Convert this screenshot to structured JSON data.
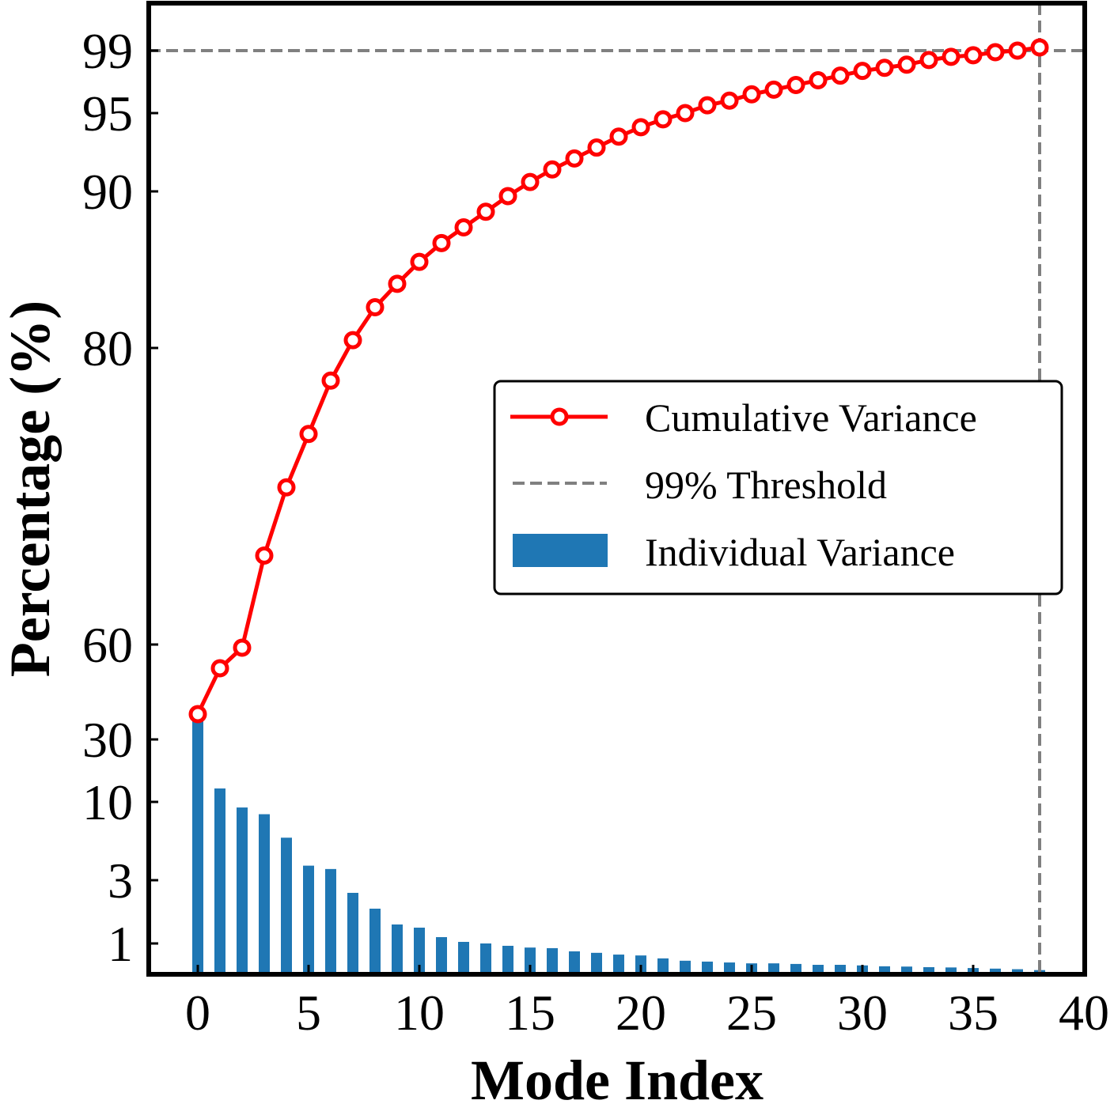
{
  "chart_data": {
    "type": "bar+line",
    "title": "",
    "xlabel": "Mode Index",
    "ylabel": "Percentage (%)",
    "xlim": [
      -2.3,
      40
    ],
    "x_ticks": [
      0,
      5,
      10,
      15,
      20,
      25,
      30,
      35,
      40
    ],
    "y_scale": "piecewise",
    "y_ticks": [
      1,
      3,
      10,
      30,
      60,
      80,
      90,
      95,
      99
    ],
    "grid": false,
    "legend_position": "center-right",
    "legend": [
      {
        "label": "Cumulative Variance",
        "kind": "line-marker",
        "color": "#ff0000"
      },
      {
        "label": "99% Threshold",
        "kind": "dashed",
        "color": "#808080"
      },
      {
        "label": "Individual Variance",
        "kind": "bar",
        "color": "#1f77b4"
      }
    ],
    "threshold": {
      "y": 99,
      "x": 38
    },
    "x": [
      0,
      1,
      2,
      3,
      4,
      5,
      6,
      7,
      8,
      9,
      10,
      11,
      12,
      13,
      14,
      15,
      16,
      17,
      18,
      19,
      20,
      21,
      22,
      23,
      24,
      25,
      26,
      27,
      28,
      29,
      30,
      31,
      32,
      33,
      34,
      35,
      36,
      37,
      38
    ],
    "series": [
      {
        "name": "Individual Variance",
        "type": "bar",
        "color": "#1f77b4",
        "values": [
          38.0,
          14.3,
          9.5,
          8.9,
          6.8,
          4.3,
          4.0,
          2.6,
          2.1,
          1.6,
          1.5,
          1.2,
          1.05,
          1.0,
          0.92,
          0.86,
          0.84,
          0.73,
          0.68,
          0.62,
          0.59,
          0.49,
          0.41,
          0.38,
          0.35,
          0.32,
          0.32,
          0.3,
          0.27,
          0.27,
          0.25,
          0.22,
          0.21,
          0.19,
          0.18,
          0.16,
          0.14,
          0.12,
          0.09
        ]
      },
      {
        "name": "Cumulative Variance",
        "type": "line",
        "color": "#ff0000",
        "values": [
          38.0,
          52.5,
          59.0,
          66.0,
          70.6,
          74.2,
          77.8,
          80.5,
          82.6,
          84.1,
          85.5,
          86.7,
          87.7,
          88.7,
          89.7,
          90.6,
          91.4,
          92.1,
          92.8,
          93.5,
          94.1,
          94.6,
          95.0,
          95.5,
          95.8,
          96.2,
          96.5,
          96.8,
          97.1,
          97.4,
          97.7,
          97.9,
          98.1,
          98.4,
          98.6,
          98.7,
          98.9,
          99.0,
          99.2
        ]
      }
    ]
  }
}
